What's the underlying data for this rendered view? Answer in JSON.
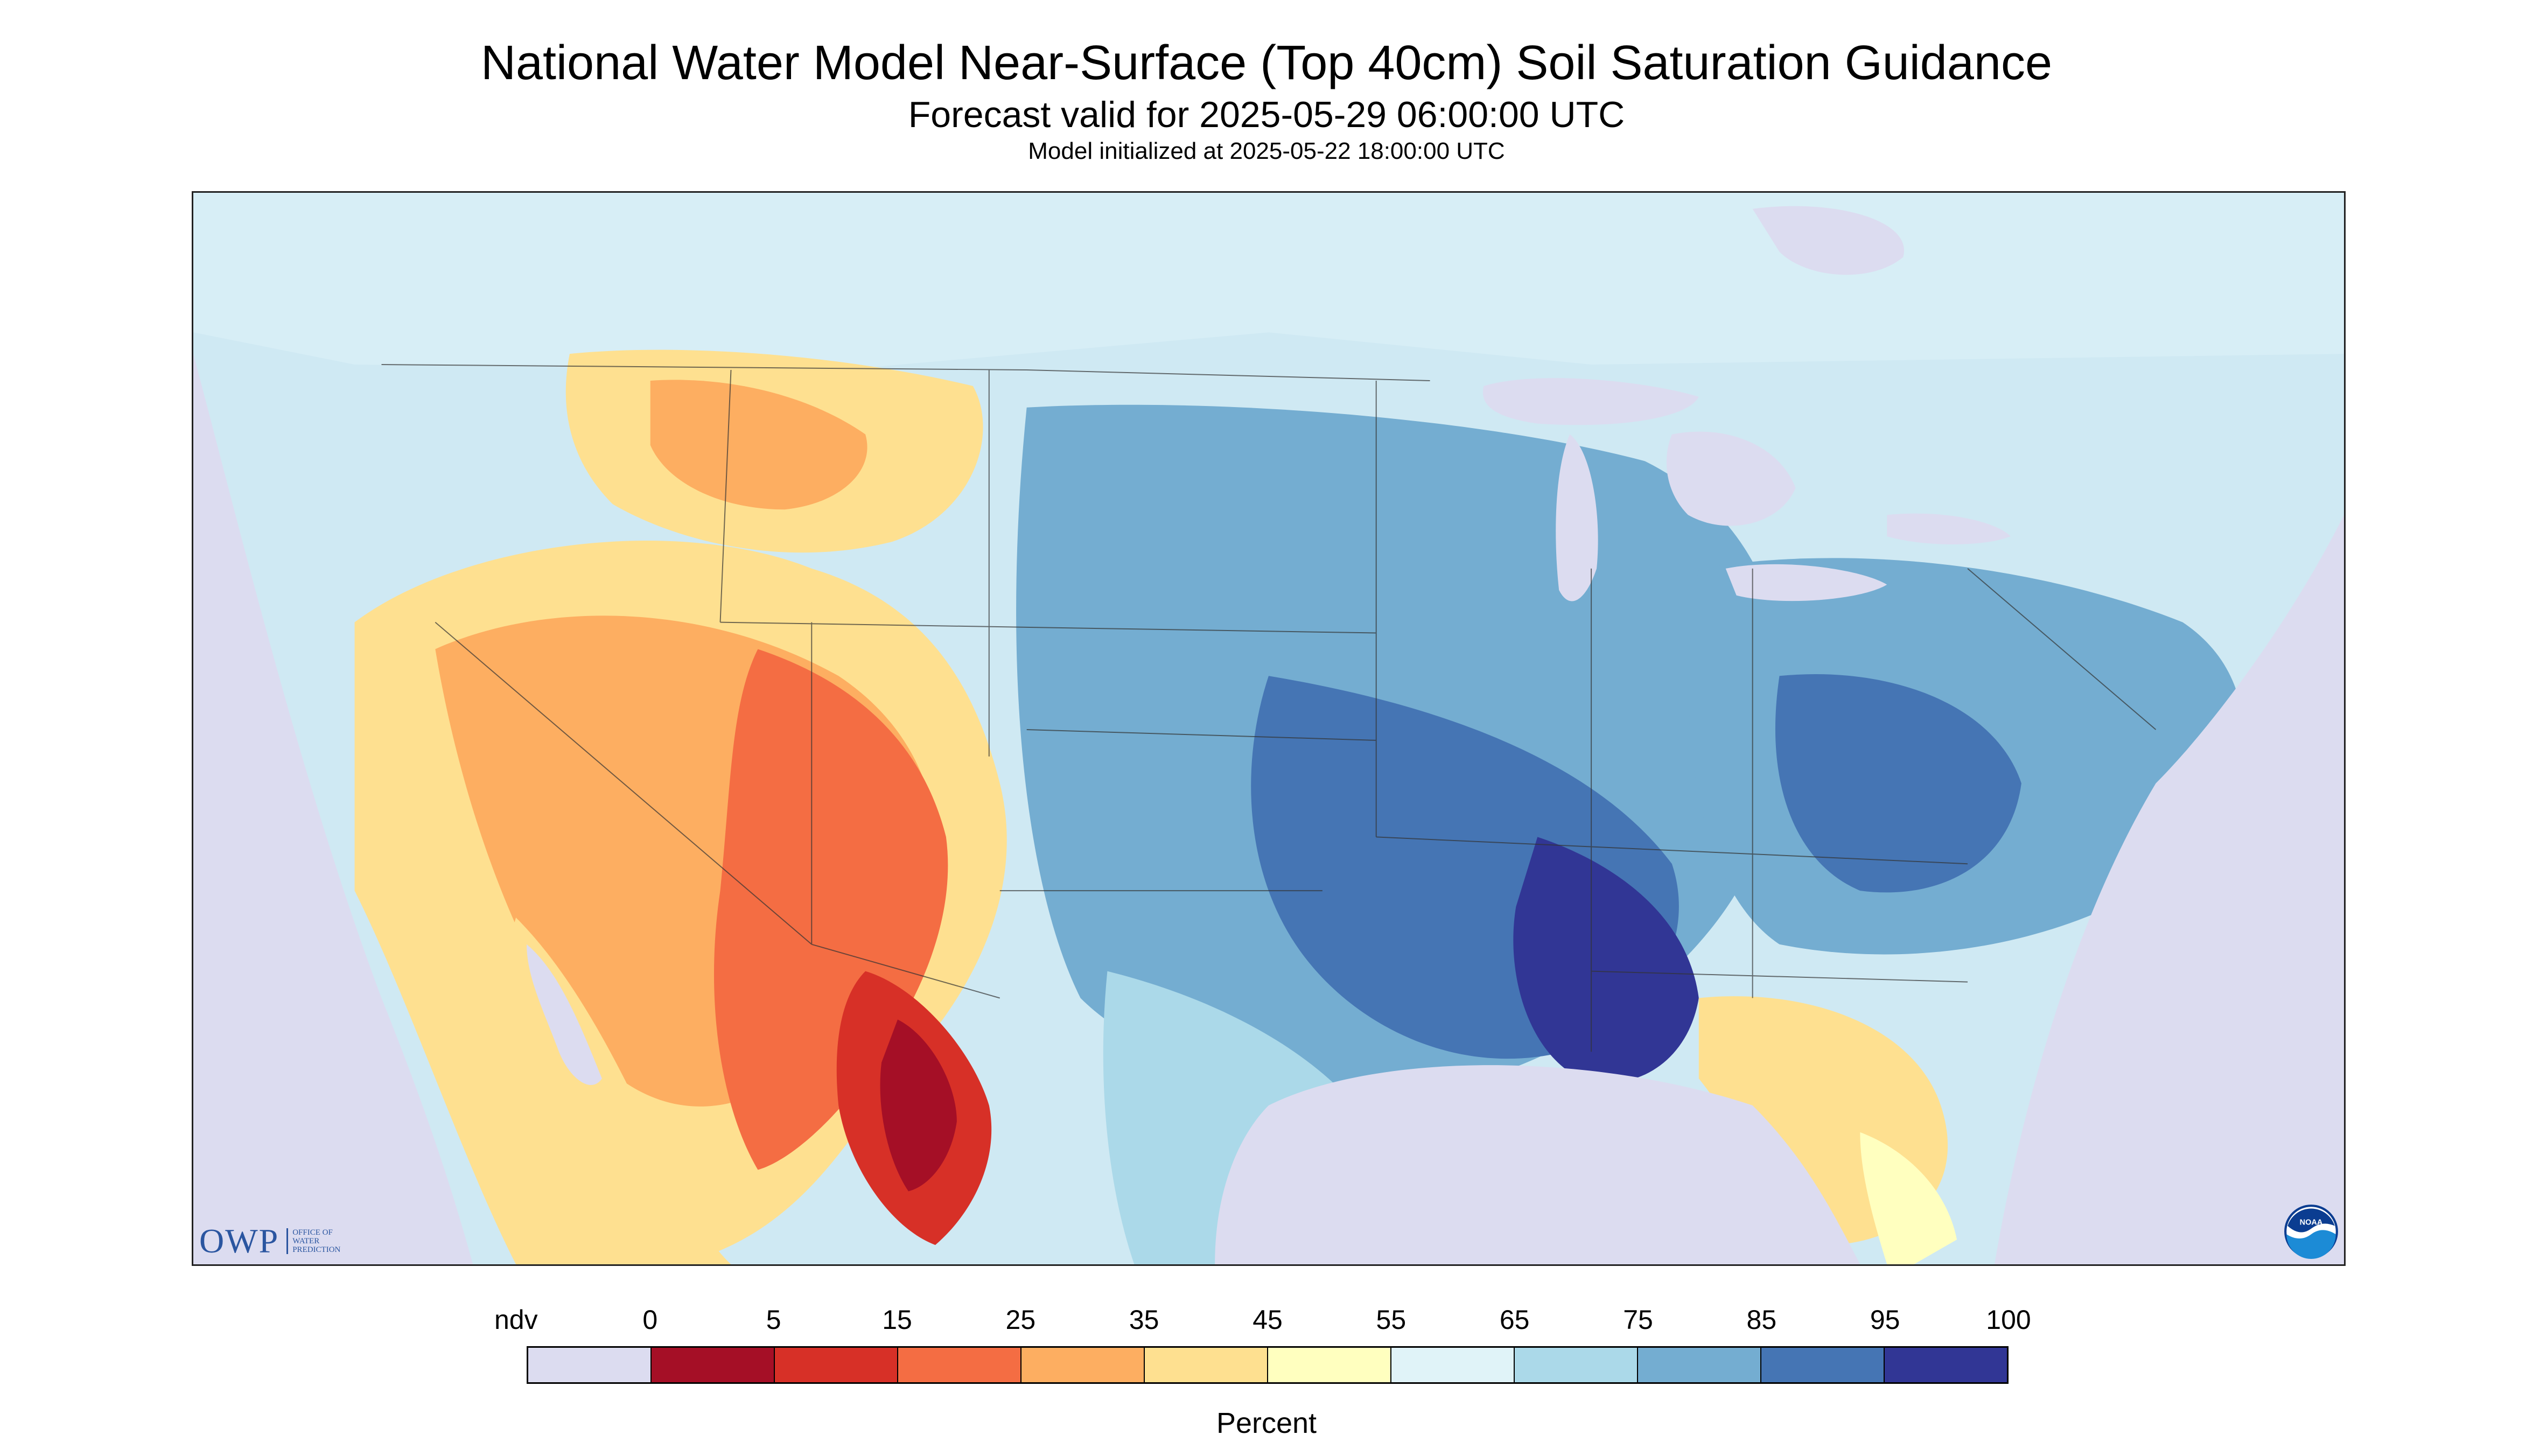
{
  "title": "National Water Model Near-Surface (Top 40cm) Soil Saturation Guidance",
  "subtitle": "Forecast valid for 2025-05-29 06:00:00 UTC",
  "init_line": "Model initialized at 2025-05-22 18:00:00 UTC",
  "logos": {
    "owp_text": "OWP",
    "owp_sub": [
      "OFFICE OF",
      "WATER",
      "PREDICTION"
    ],
    "noaa_text": "NOAA"
  },
  "legend": {
    "units": "Percent",
    "tick_labels": [
      "ndv",
      "0",
      "5",
      "15",
      "25",
      "35",
      "45",
      "55",
      "65",
      "75",
      "85",
      "95",
      "100"
    ],
    "colors": [
      "#dcdcf0",
      "#a50f26",
      "#d73027",
      "#f46d43",
      "#fdae61",
      "#fee090",
      "#ffffbf",
      "#e0f3f8",
      "#abd9e9",
      "#74add1",
      "#4575b4",
      "#313695"
    ]
  },
  "map": {
    "background_nodata": "#dcdcf0",
    "water": "#dcdcf0",
    "palette_dry": [
      "#a50f26",
      "#d73027",
      "#f46d43",
      "#fdae61",
      "#fee090",
      "#ffffbf"
    ],
    "palette_wet": [
      "#e0f3f8",
      "#abd9e9",
      "#74add1",
      "#4575b4",
      "#313695"
    ]
  }
}
